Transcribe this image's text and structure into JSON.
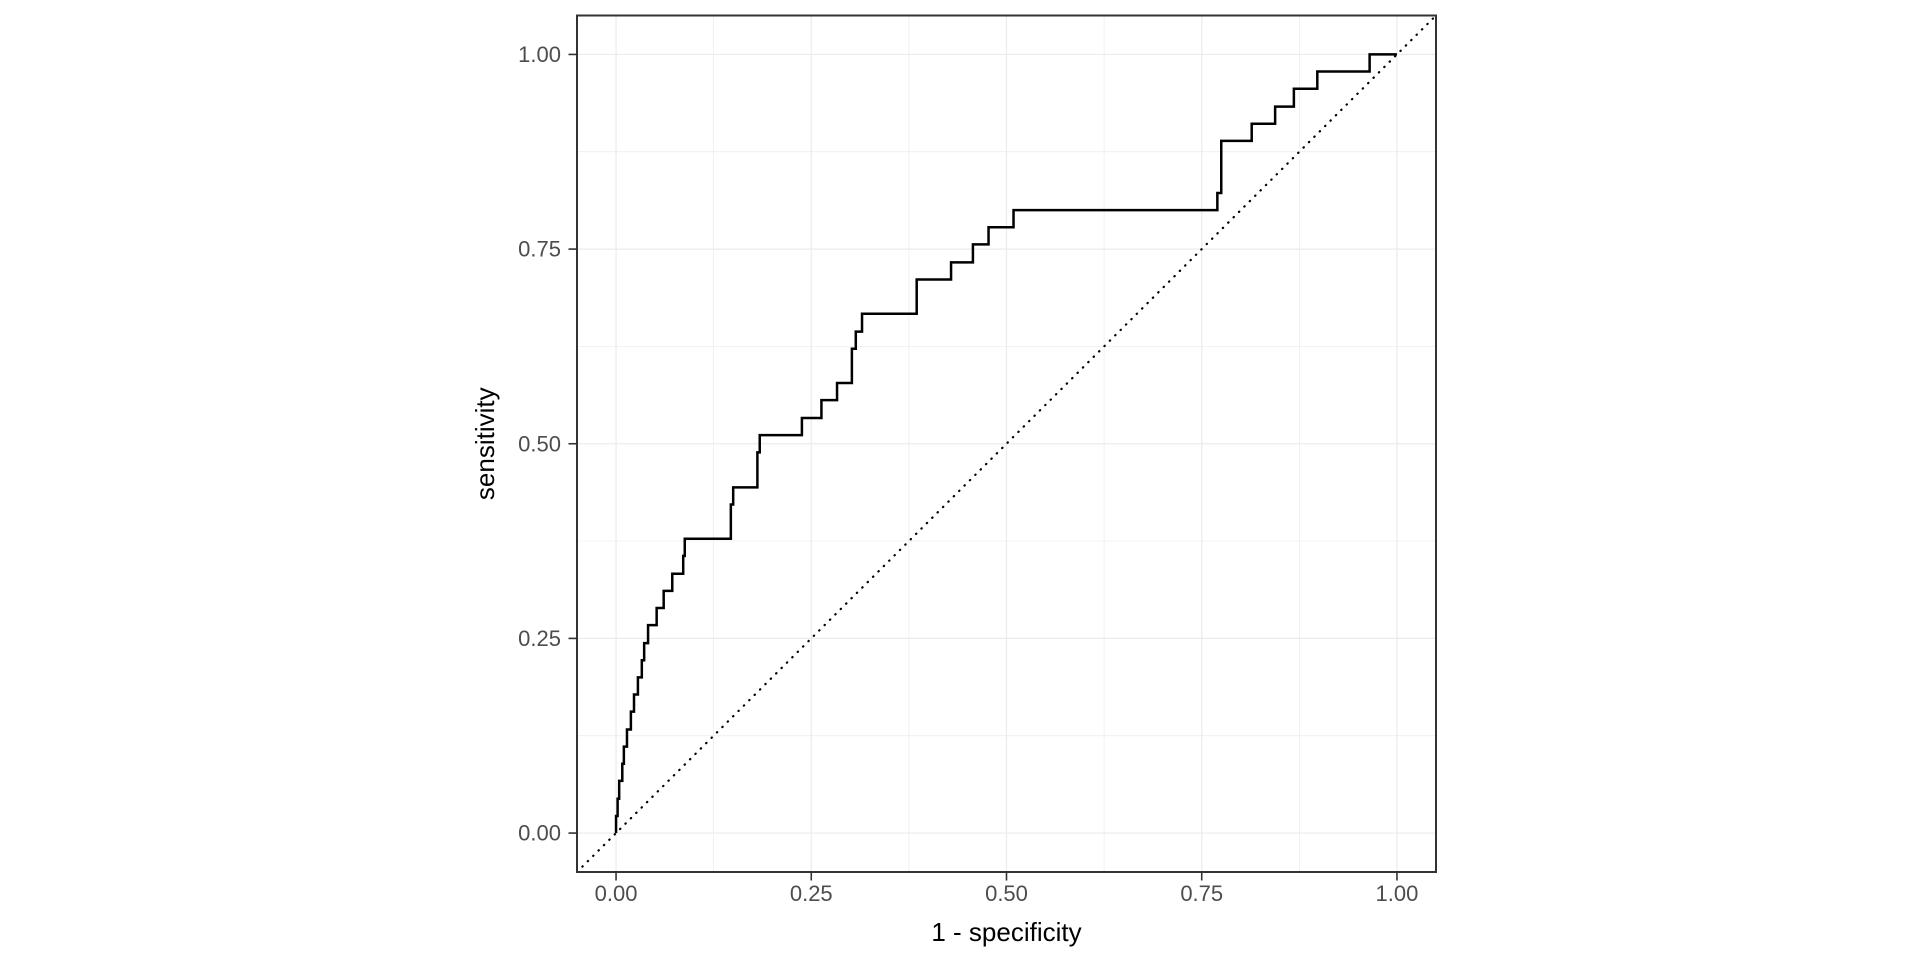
{
  "figure": {
    "background": "#ffffff",
    "panel": {
      "fill": "#ffffff",
      "border_color": "#333333",
      "grid_major_color": "#ebebeb",
      "grid_minor_color": "#ebebeb"
    },
    "axis": {
      "tick_color": "#333333",
      "tick_label_color": "#4d4d4d",
      "title_color": "#000000"
    }
  },
  "chart_data": {
    "type": "line",
    "subtype": "roc-step-curve",
    "title": "",
    "xlabel": "1 - specificity",
    "ylabel": "sensitivity",
    "xlim": [
      -0.05,
      1.05
    ],
    "ylim": [
      -0.05,
      1.05
    ],
    "grid": true,
    "legend": "none",
    "x_major_ticks": [
      0,
      0.25,
      0.5,
      0.75,
      1
    ],
    "x_tick_labels": [
      "0.00",
      "0.25",
      "0.50",
      "0.75",
      "1.00"
    ],
    "y_major_ticks": [
      0,
      0.25,
      0.5,
      0.75,
      1
    ],
    "y_tick_labels": [
      "0.00",
      "0.25",
      "0.50",
      "0.75",
      "1.00"
    ],
    "minor_ticks": [
      0.125,
      0.375,
      0.625,
      0.875
    ],
    "series": [
      {
        "name": "ROC curve",
        "type": "step",
        "color": "#000000",
        "stroke_width": 2.5,
        "points": [
          [
            0,
            0
          ],
          [
            0,
            0.022
          ],
          [
            0.002,
            0.022
          ],
          [
            0.002,
            0.044
          ],
          [
            0.004,
            0.044
          ],
          [
            0.004,
            0.067
          ],
          [
            0.008,
            0.067
          ],
          [
            0.008,
            0.089
          ],
          [
            0.01,
            0.089
          ],
          [
            0.01,
            0.111
          ],
          [
            0.014,
            0.111
          ],
          [
            0.014,
            0.133
          ],
          [
            0.019,
            0.133
          ],
          [
            0.019,
            0.156
          ],
          [
            0.023,
            0.156
          ],
          [
            0.023,
            0.178
          ],
          [
            0.028,
            0.178
          ],
          [
            0.028,
            0.2
          ],
          [
            0.033,
            0.2
          ],
          [
            0.033,
            0.222
          ],
          [
            0.036,
            0.222
          ],
          [
            0.036,
            0.244
          ],
          [
            0.041,
            0.244
          ],
          [
            0.041,
            0.267
          ],
          [
            0.052,
            0.267
          ],
          [
            0.052,
            0.289
          ],
          [
            0.061,
            0.289
          ],
          [
            0.061,
            0.311
          ],
          [
            0.072,
            0.311
          ],
          [
            0.072,
            0.333
          ],
          [
            0.086,
            0.333
          ],
          [
            0.086,
            0.356
          ],
          [
            0.088,
            0.356
          ],
          [
            0.088,
            0.378
          ],
          [
            0.147,
            0.378
          ],
          [
            0.147,
            0.422
          ],
          [
            0.15,
            0.422
          ],
          [
            0.15,
            0.444
          ],
          [
            0.181,
            0.444
          ],
          [
            0.181,
            0.489
          ],
          [
            0.184,
            0.489
          ],
          [
            0.184,
            0.511
          ],
          [
            0.238,
            0.511
          ],
          [
            0.238,
            0.533
          ],
          [
            0.263,
            0.533
          ],
          [
            0.263,
            0.556
          ],
          [
            0.283,
            0.556
          ],
          [
            0.283,
            0.578
          ],
          [
            0.302,
            0.578
          ],
          [
            0.302,
            0.622
          ],
          [
            0.307,
            0.622
          ],
          [
            0.307,
            0.644
          ],
          [
            0.315,
            0.644
          ],
          [
            0.315,
            0.667
          ],
          [
            0.385,
            0.667
          ],
          [
            0.385,
            0.711
          ],
          [
            0.429,
            0.711
          ],
          [
            0.429,
            0.733
          ],
          [
            0.457,
            0.733
          ],
          [
            0.457,
            0.756
          ],
          [
            0.477,
            0.756
          ],
          [
            0.477,
            0.778
          ],
          [
            0.509,
            0.778
          ],
          [
            0.509,
            0.8
          ],
          [
            0.77,
            0.8
          ],
          [
            0.77,
            0.822
          ],
          [
            0.775,
            0.822
          ],
          [
            0.775,
            0.889
          ],
          [
            0.814,
            0.889
          ],
          [
            0.814,
            0.911
          ],
          [
            0.844,
            0.911
          ],
          [
            0.844,
            0.933
          ],
          [
            0.868,
            0.933
          ],
          [
            0.868,
            0.956
          ],
          [
            0.898,
            0.956
          ],
          [
            0.898,
            0.978
          ],
          [
            0.965,
            0.978
          ],
          [
            0.965,
            1.0
          ],
          [
            1.0,
            1.0
          ]
        ]
      },
      {
        "name": "chance reference line",
        "type": "diagonal-dotted",
        "color": "#000000",
        "stroke_width": 2.2,
        "from": [
          -0.05,
          -0.05
        ],
        "to": [
          1.05,
          1.05
        ]
      }
    ]
  }
}
